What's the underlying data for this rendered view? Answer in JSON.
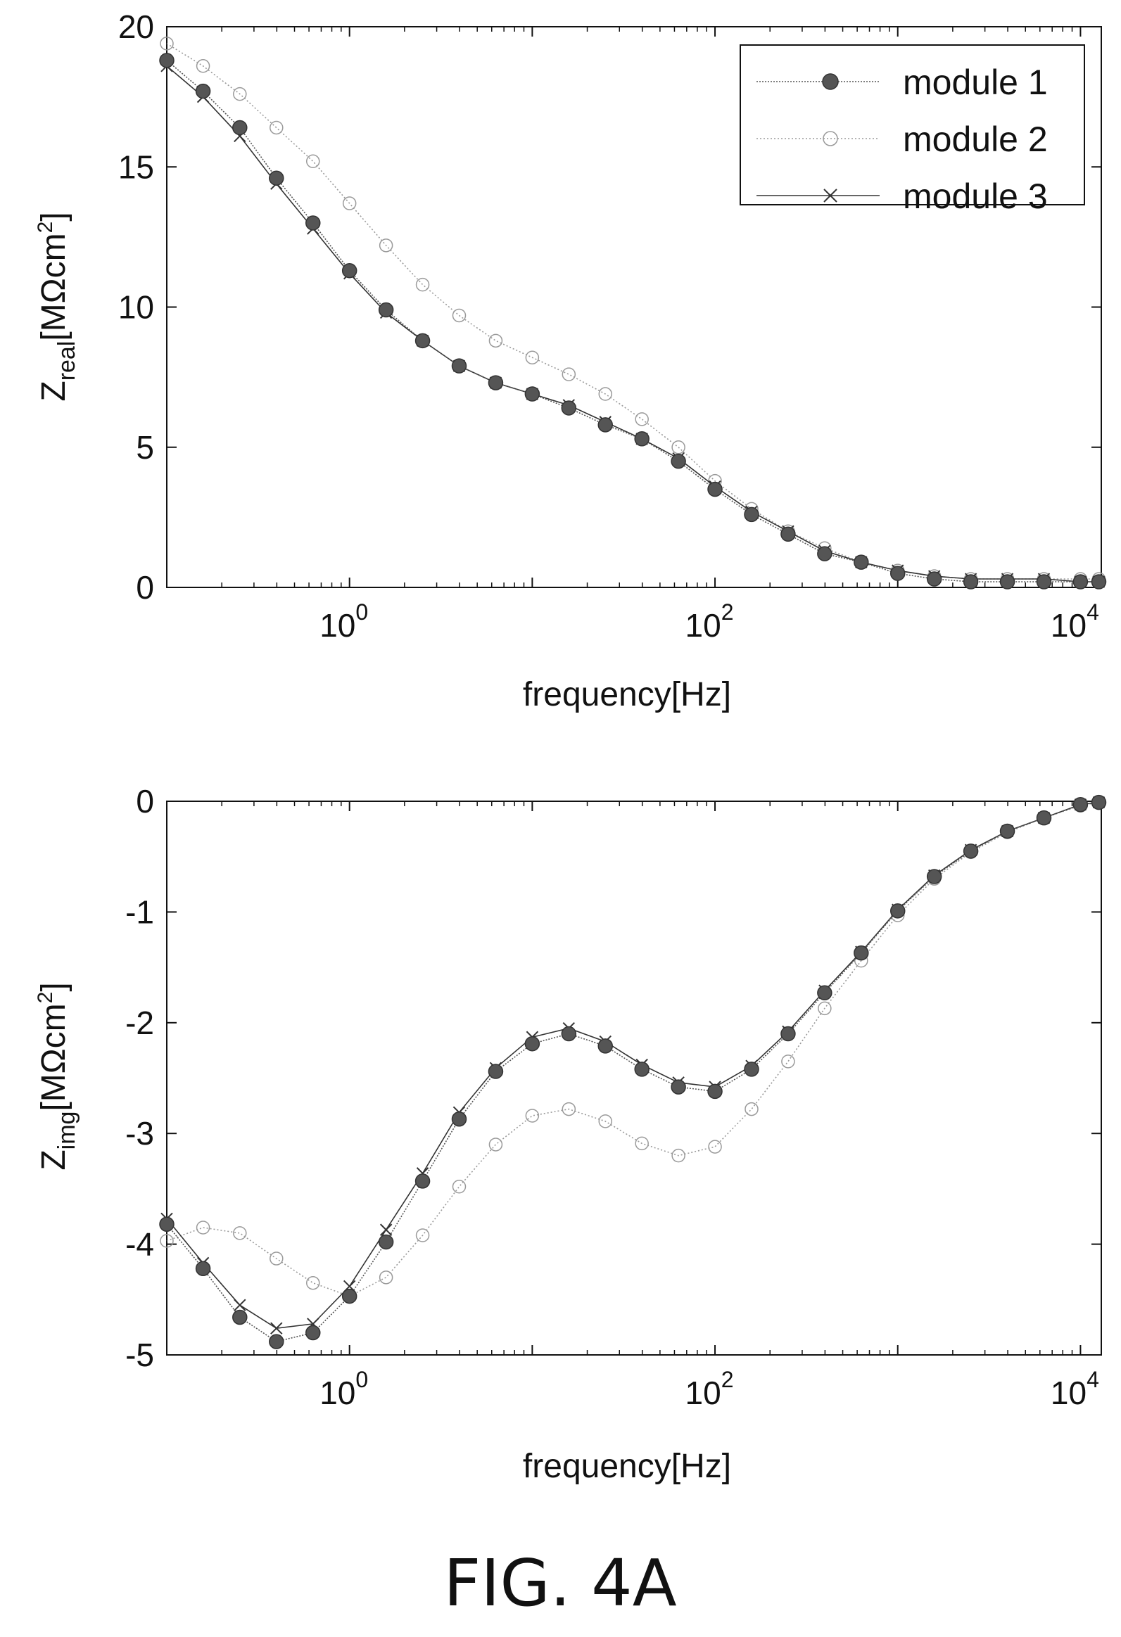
{
  "chart_data": [
    {
      "type": "line",
      "ylabel": {
        "base": "Z",
        "sub": "real",
        "unit_pre": "[MΩcm",
        "unit_sup": "2",
        "unit_post": "]"
      },
      "xlabel": "frequency[Hz]",
      "xscale": "log",
      "xlim": [
        0.1,
        13000
      ],
      "ylim": [
        0,
        20
      ],
      "xticks": [
        1,
        100,
        10000
      ],
      "xtick_labels": [
        {
          "base": "10",
          "exp": "0"
        },
        {
          "base": "10",
          "exp": "2"
        },
        {
          "base": "10",
          "exp": "4"
        }
      ],
      "yticks": [
        0,
        5,
        10,
        15,
        20
      ],
      "ytick_labels": [
        "0",
        "5",
        "10",
        "15",
        "20"
      ],
      "legend": {
        "position": "top-right",
        "entries": [
          "module 1",
          "module 2",
          "module 3"
        ]
      },
      "x": [
        0.1,
        0.158,
        0.251,
        0.398,
        0.631,
        1,
        1.585,
        2.512,
        3.981,
        6.31,
        10,
        15.85,
        25.12,
        39.81,
        63.1,
        100,
        158.5,
        251.2,
        398.1,
        631,
        1000,
        1585,
        2512,
        3981,
        6310,
        10000,
        12600
      ],
      "series": [
        {
          "name": "module 1",
          "marker": "filled-circle",
          "color": "#555555",
          "values": [
            18.8,
            17.7,
            16.4,
            14.6,
            13.0,
            11.3,
            9.9,
            8.8,
            7.9,
            7.3,
            6.9,
            6.4,
            5.8,
            5.3,
            4.5,
            3.5,
            2.6,
            1.9,
            1.2,
            0.9,
            0.5,
            0.3,
            0.2,
            0.2,
            0.2,
            0.2,
            0.2
          ]
        },
        {
          "name": "module 2",
          "marker": "open-circle",
          "color": "#9a9a9a",
          "values": [
            19.4,
            18.6,
            17.6,
            16.4,
            15.2,
            13.7,
            12.2,
            10.8,
            9.7,
            8.8,
            8.2,
            7.6,
            6.9,
            6.0,
            5.0,
            3.8,
            2.8,
            2.0,
            1.4,
            0.9,
            0.6,
            0.4,
            0.3,
            0.3,
            0.3,
            0.3,
            0.3
          ]
        },
        {
          "name": "module 3",
          "marker": "cross",
          "color": "#333333",
          "values": [
            18.6,
            17.5,
            16.1,
            14.4,
            12.8,
            11.2,
            9.8,
            8.8,
            7.9,
            7.3,
            6.9,
            6.5,
            5.9,
            5.3,
            4.6,
            3.6,
            2.7,
            2.0,
            1.3,
            0.9,
            0.6,
            0.4,
            0.3,
            0.3,
            0.3,
            0.2,
            0.2
          ]
        }
      ]
    },
    {
      "type": "line",
      "ylabel": {
        "base": "Z",
        "sub": "img",
        "unit_pre": "[MΩcm",
        "unit_sup": "2",
        "unit_post": "]"
      },
      "xlabel": "frequency[Hz]",
      "xscale": "log",
      "xlim": [
        0.1,
        13000
      ],
      "ylim": [
        -5,
        0
      ],
      "xticks": [
        1,
        100,
        10000
      ],
      "xtick_labels": [
        {
          "base": "10",
          "exp": "0"
        },
        {
          "base": "10",
          "exp": "2"
        },
        {
          "base": "10",
          "exp": "4"
        }
      ],
      "yticks": [
        -5,
        -4,
        -3,
        -2,
        -1,
        0
      ],
      "ytick_labels": [
        "-5",
        "-4",
        "-3",
        "-2",
        "-1",
        "0"
      ],
      "x": [
        0.1,
        0.158,
        0.251,
        0.398,
        0.631,
        1,
        1.585,
        2.512,
        3.981,
        6.31,
        10,
        15.85,
        25.12,
        39.81,
        63.1,
        100,
        158.5,
        251.2,
        398.1,
        631,
        1000,
        1585,
        2512,
        3981,
        6310,
        10000,
        12600
      ],
      "series": [
        {
          "name": "module 1",
          "marker": "filled-circle",
          "color": "#555555",
          "values": [
            -3.82,
            -4.22,
            -4.66,
            -4.88,
            -4.8,
            -4.47,
            -3.98,
            -3.43,
            -2.87,
            -2.44,
            -2.19,
            -2.1,
            -2.21,
            -2.42,
            -2.58,
            -2.62,
            -2.42,
            -2.1,
            -1.73,
            -1.37,
            -0.99,
            -0.68,
            -0.45,
            -0.27,
            -0.15,
            -0.03,
            -0.01
          ]
        },
        {
          "name": "module 2",
          "marker": "open-circle",
          "color": "#9a9a9a",
          "values": [
            -3.97,
            -3.85,
            -3.9,
            -4.13,
            -4.35,
            -4.47,
            -4.3,
            -3.92,
            -3.48,
            -3.1,
            -2.84,
            -2.78,
            -2.89,
            -3.09,
            -3.2,
            -3.12,
            -2.78,
            -2.35,
            -1.87,
            -1.44,
            -1.03,
            -0.7,
            -0.46,
            -0.28,
            -0.15,
            -0.04,
            -0.01
          ]
        },
        {
          "name": "module 3",
          "marker": "cross",
          "color": "#333333",
          "values": [
            -3.77,
            -4.17,
            -4.55,
            -4.76,
            -4.72,
            -4.38,
            -3.87,
            -3.36,
            -2.81,
            -2.41,
            -2.13,
            -2.05,
            -2.17,
            -2.38,
            -2.54,
            -2.58,
            -2.39,
            -2.08,
            -1.71,
            -1.36,
            -0.98,
            -0.67,
            -0.44,
            -0.27,
            -0.15,
            -0.03,
            -0.01
          ]
        }
      ]
    }
  ],
  "caption": "FIG. 4A"
}
